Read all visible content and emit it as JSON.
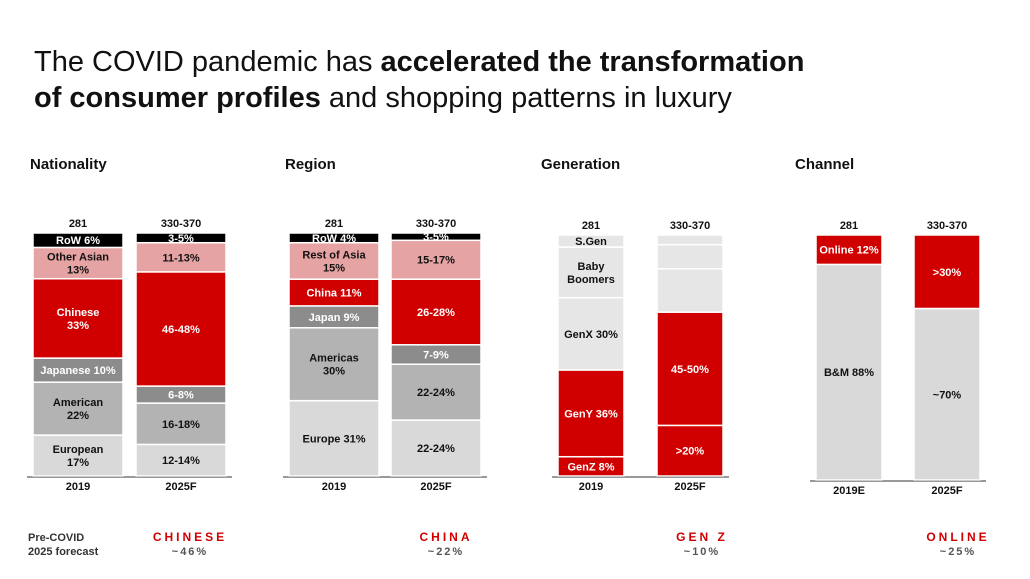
{
  "headline": {
    "part1": "The COVID pandemic has ",
    "bold1": "accelerated the transformation",
    "bold2": "of consumer profiles",
    "part2": " and shopping patterns in luxury"
  },
  "colors": {
    "red": "#d10000",
    "black": "#000000",
    "pink": "#e6a3a3",
    "dark_gray": "#8c8c8c",
    "mid_gray": "#b3b3b3",
    "light_gray": "#d9d9d9",
    "lighter_gray": "#e6e6e6"
  },
  "chart_data": [
    {
      "type": "bar",
      "stacked": true,
      "title": "Nationality",
      "categories": [
        "2019",
        "2025F"
      ],
      "totals": [
        "281",
        "330-370"
      ],
      "segments": [
        {
          "name": "European",
          "labels": [
            "European 17%",
            "12-14%"
          ],
          "values": [
            17,
            13
          ],
          "color": "#d9d9d9",
          "text_color": "#111111"
        },
        {
          "name": "American",
          "labels": [
            "American 22%",
            "16-18%"
          ],
          "values": [
            22,
            17
          ],
          "color": "#b3b3b3",
          "text_color": "#111111"
        },
        {
          "name": "Japanese",
          "labels": [
            "Japanese 10%",
            "6-8%"
          ],
          "values": [
            10,
            7
          ],
          "color": "#8c8c8c",
          "text_color": "#ffffff"
        },
        {
          "name": "Chinese",
          "labels": [
            "Chinese 33%",
            "46-48%"
          ],
          "values": [
            33,
            47
          ],
          "color": "#d10000",
          "text_color": "#ffffff"
        },
        {
          "name": "Other Asian",
          "labels": [
            "Other Asian 13%",
            "11-13%"
          ],
          "values": [
            13,
            12
          ],
          "color": "#e6a3a3",
          "text_color": "#111111"
        },
        {
          "name": "RoW",
          "labels": [
            "RoW 6%",
            "3-5%"
          ],
          "values": [
            6,
            4
          ],
          "color": "#000000",
          "text_color": "#ffffff"
        }
      ],
      "footer_label": "CHINESE",
      "footer_value": "~46%"
    },
    {
      "type": "bar",
      "stacked": true,
      "title": "Region",
      "categories": [
        "2019",
        "2025F"
      ],
      "totals": [
        "281",
        "330-370"
      ],
      "segments": [
        {
          "name": "Europe",
          "labels": [
            "Europe 31%",
            "22-24%"
          ],
          "values": [
            31,
            23
          ],
          "color": "#d9d9d9",
          "text_color": "#111111"
        },
        {
          "name": "Americas",
          "labels": [
            "Americas 30%",
            "22-24%"
          ],
          "values": [
            30,
            23
          ],
          "color": "#b3b3b3",
          "text_color": "#111111"
        },
        {
          "name": "Japan",
          "labels": [
            "Japan 9%",
            "7-9%"
          ],
          "values": [
            9,
            8
          ],
          "color": "#8c8c8c",
          "text_color": "#ffffff"
        },
        {
          "name": "China",
          "labels": [
            "China 11%",
            "26-28%"
          ],
          "values": [
            11,
            27
          ],
          "color": "#d10000",
          "text_color": "#ffffff"
        },
        {
          "name": "Rest of Asia",
          "labels": [
            "Rest of Asia 15%",
            "15-17%"
          ],
          "values": [
            15,
            16
          ],
          "color": "#e6a3a3",
          "text_color": "#111111"
        },
        {
          "name": "RoW",
          "labels": [
            "RoW 4%",
            "3-5%"
          ],
          "values": [
            4,
            3
          ],
          "color": "#000000",
          "text_color": "#ffffff"
        }
      ],
      "footer_label": "CHINA",
      "footer_value": "~22%"
    },
    {
      "type": "bar",
      "stacked": true,
      "title": "Generation",
      "categories": [
        "2019",
        "2025F"
      ],
      "totals": [
        "281",
        "330-370"
      ],
      "segments": [
        {
          "name": "GenZ",
          "labels": [
            "GenZ 8%",
            ">20%"
          ],
          "values": [
            8,
            21
          ],
          "color": "#d10000",
          "text_color": "#ffffff"
        },
        {
          "name": "GenY",
          "labels": [
            "GenY 36%",
            "45-50%"
          ],
          "values": [
            36,
            47
          ],
          "color": "#d10000",
          "text_color": "#ffffff"
        },
        {
          "name": "GenX",
          "labels": [
            "GenX 30%",
            ""
          ],
          "values": [
            30,
            18
          ],
          "color": "#e6e6e6",
          "text_color": "#111111"
        },
        {
          "name": "Baby Boomers",
          "labels": [
            "Baby Boomers",
            ""
          ],
          "values": [
            21,
            10
          ],
          "color": "#e6e6e6",
          "text_color": "#111111"
        },
        {
          "name": "S.Gen",
          "labels": [
            "S.Gen",
            ""
          ],
          "values": [
            5,
            4
          ],
          "color": "#e6e6e6",
          "text_color": "#111111"
        }
      ],
      "footer_label": "GEN Z",
      "footer_value": "~10%"
    },
    {
      "type": "bar",
      "stacked": true,
      "title": "Channel",
      "categories": [
        "2019E",
        "2025F"
      ],
      "totals": [
        "281",
        "330-370"
      ],
      "segments": [
        {
          "name": "B&M",
          "labels": [
            "B&M 88%",
            "~70%"
          ],
          "values": [
            88,
            70
          ],
          "color": "#d9d9d9",
          "text_color": "#111111"
        },
        {
          "name": "Online",
          "labels": [
            "Online 12%",
            ">30%"
          ],
          "values": [
            12,
            30
          ],
          "color": "#d10000",
          "text_color": "#ffffff"
        }
      ],
      "footer_label": "ONLINE",
      "footer_value": "~25%"
    }
  ],
  "footer_note": {
    "line1": "Pre-COVID",
    "line2": "2025 forecast"
  }
}
